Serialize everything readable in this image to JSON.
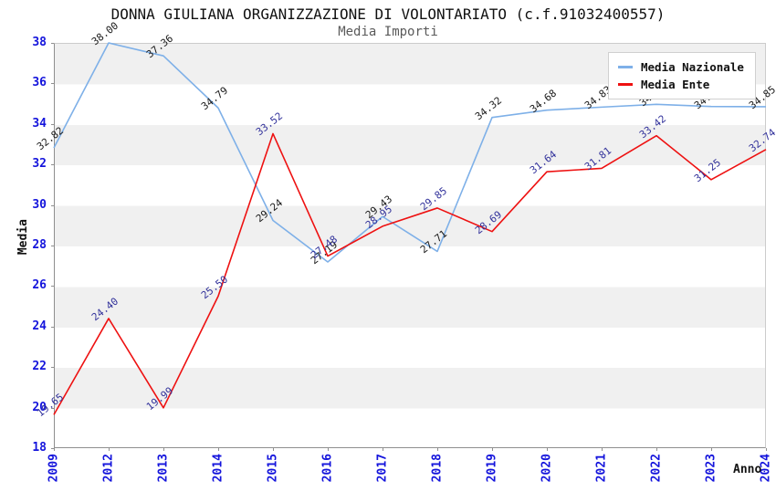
{
  "header": {
    "title": "DONNA GIULIANA ORGANIZZAZIONE DI VOLONTARIATO (c.f.91032400557)",
    "subtitle": "Media Importi"
  },
  "axes": {
    "x_label": "Anno",
    "y_label": "Media",
    "y_ticks": [
      38,
      36,
      34,
      32,
      30,
      28,
      26,
      24,
      22,
      20,
      18
    ]
  },
  "colors": {
    "axis_tick_text": "#1414dc",
    "band_gray": "#f0f0f0",
    "nazionale_line": "#7eb0e8",
    "ente_line": "#ee1111",
    "nazionale_label_text": "#1a1a1a",
    "ente_label_text": "#32329b"
  },
  "chart_data": {
    "type": "line",
    "title": "DONNA GIULIANA ORGANIZZAZIONE DI VOLONTARIATO (c.f.91032400557)",
    "subtitle": "Media Importi",
    "xlabel": "Anno",
    "ylabel": "Media",
    "ylim": [
      18,
      38
    ],
    "ytick_step": 2,
    "grid": "horizontal-banded",
    "legend_position": "top-right",
    "categories": [
      "2009",
      "2012",
      "2013",
      "2014",
      "2015",
      "2016",
      "2017",
      "2018",
      "2019",
      "2020",
      "2021",
      "2022",
      "2023",
      "2024"
    ],
    "series": [
      {
        "name": "Media Nazionale",
        "color": "#7eb0e8",
        "label_color": "#1a1a1a",
        "values": [
          32.82,
          38.0,
          37.36,
          34.79,
          29.24,
          27.19,
          29.43,
          27.71,
          34.32,
          34.68,
          34.83,
          34.97,
          34.86,
          34.85
        ]
      },
      {
        "name": "Media Ente",
        "color": "#ee1111",
        "label_color": "#32329b",
        "values": [
          19.65,
          24.4,
          19.99,
          25.5,
          33.52,
          27.48,
          28.95,
          29.85,
          28.69,
          31.64,
          31.81,
          33.42,
          31.25,
          32.74
        ]
      }
    ]
  }
}
